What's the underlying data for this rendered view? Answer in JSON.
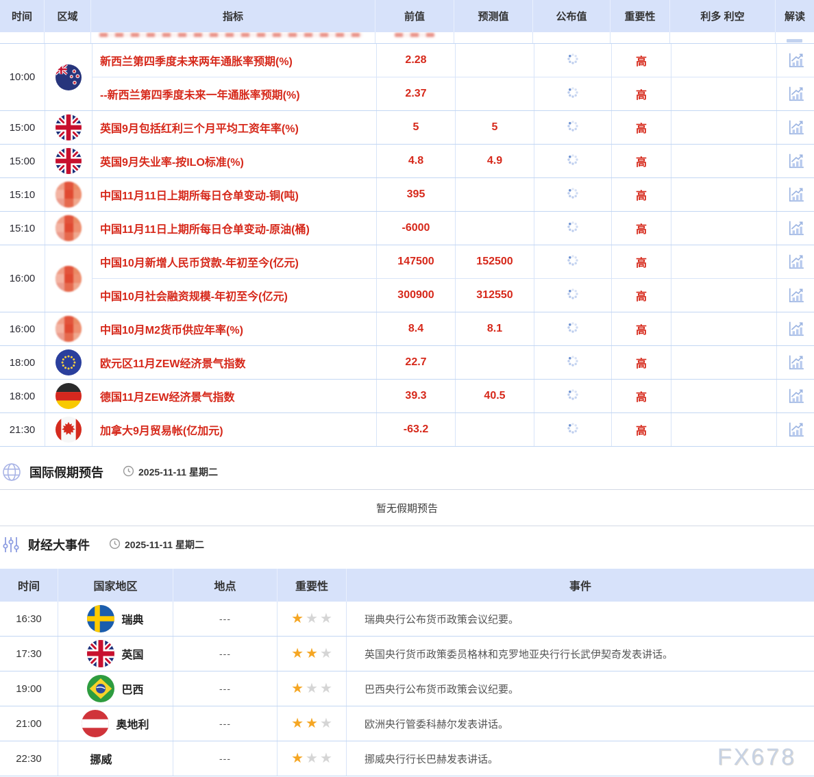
{
  "economic_calendar": {
    "columns": [
      "时间",
      "区域",
      "指标",
      "前值",
      "预测值",
      "公布值",
      "重要性",
      "利多 利空",
      "解读"
    ],
    "groups": [
      {
        "time": "10:00",
        "region": "nz",
        "items": [
          {
            "indicator": "新西兰第四季度未来两年通胀率预期(%)",
            "prev": "2.28",
            "forecast": "",
            "importance": "高"
          },
          {
            "indicator": "--新西兰第四季度未来一年通胀率预期(%)",
            "prev": "2.37",
            "forecast": "",
            "importance": "高"
          }
        ]
      },
      {
        "time": "15:00",
        "region": "uk",
        "items": [
          {
            "indicator": "英国9月包括红利三个月平均工资年率(%)",
            "prev": "5",
            "forecast": "5",
            "importance": "高"
          }
        ]
      },
      {
        "time": "15:00",
        "region": "uk",
        "items": [
          {
            "indicator": "英国9月失业率-按ILO标准(%)",
            "prev": "4.8",
            "forecast": "4.9",
            "importance": "高"
          }
        ]
      },
      {
        "time": "15:10",
        "region": "cn",
        "items": [
          {
            "indicator": "中国11月11日上期所每日仓单变动-铜(吨)",
            "prev": "395",
            "forecast": "",
            "importance": "高"
          }
        ]
      },
      {
        "time": "15:10",
        "region": "cn",
        "items": [
          {
            "indicator": "中国11月11日上期所每日仓单变动-原油(桶)",
            "prev": "-6000",
            "forecast": "",
            "importance": "高"
          }
        ]
      },
      {
        "time": "16:00",
        "region": "cn",
        "items": [
          {
            "indicator": "中国10月新增人民币贷款-年初至今(亿元)",
            "prev": "147500",
            "forecast": "152500",
            "importance": "高"
          },
          {
            "indicator": "中国10月社会融资规模-年初至今(亿元)",
            "prev": "300900",
            "forecast": "312550",
            "importance": "高"
          }
        ]
      },
      {
        "time": "16:00",
        "region": "cn",
        "items": [
          {
            "indicator": "中国10月M2货币供应年率(%)",
            "prev": "8.4",
            "forecast": "8.1",
            "importance": "高"
          }
        ]
      },
      {
        "time": "18:00",
        "region": "eu",
        "items": [
          {
            "indicator": "欧元区11月ZEW经济景气指数",
            "prev": "22.7",
            "forecast": "",
            "importance": "高"
          }
        ]
      },
      {
        "time": "18:00",
        "region": "de",
        "items": [
          {
            "indicator": "德国11月ZEW经济景气指数",
            "prev": "39.3",
            "forecast": "40.5",
            "importance": "高"
          }
        ]
      },
      {
        "time": "21:30",
        "region": "ca",
        "items": [
          {
            "indicator": "加拿大9月贸易帐(亿加元)",
            "prev": "-63.2",
            "forecast": "",
            "importance": "高"
          }
        ]
      }
    ]
  },
  "holiday_section": {
    "title": "国际假期预告",
    "date": "2025-11-11 星期二",
    "empty_message": "暂无假期预告"
  },
  "events_section": {
    "title": "财经大事件",
    "date": "2025-11-11 星期二",
    "columns": [
      "时间",
      "国家地区",
      "地点",
      "重要性",
      "事件"
    ],
    "max_stars": 3,
    "rows": [
      {
        "time": "16:30",
        "region": "se",
        "country": "瑞典",
        "location": "---",
        "stars": 1,
        "event": "瑞典央行公布货币政策会议纪要。"
      },
      {
        "time": "17:30",
        "region": "uk",
        "country": "英国",
        "location": "---",
        "stars": 2,
        "event": "英国央行货币政策委员格林和克罗地亚央行行长武伊契奇发表讲话。"
      },
      {
        "time": "19:00",
        "region": "br",
        "country": "巴西",
        "location": "---",
        "stars": 1,
        "event": "巴西央行公布货币政策会议纪要。"
      },
      {
        "time": "21:00",
        "region": "at",
        "country": "奥地利",
        "location": "---",
        "stars": 2,
        "event": "欧洲央行管委科赫尔发表讲话。"
      },
      {
        "time": "22:30",
        "region": null,
        "country": "挪威",
        "location": "---",
        "stars": 1,
        "event": "挪威央行行长巴赫发表讲话。"
      }
    ]
  },
  "watermark": "FX678",
  "colors": {
    "accent_red": "#d6281a",
    "header_bg": "#d7e2fa",
    "border_blue": "#c2d6f3",
    "star_orange": "#f5a623",
    "star_gray": "#d5d5d5"
  }
}
